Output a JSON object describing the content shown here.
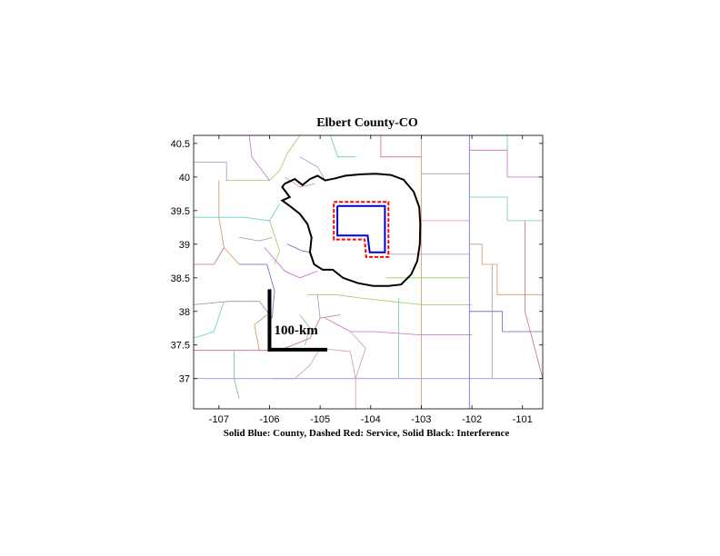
{
  "figure": {
    "title": "Elbert County-CO",
    "caption": "Solid Blue: County, Dashed Red: Service, Solid Black: Interference",
    "scale_bar_label": "100-km"
  },
  "chart_data": {
    "type": "map",
    "title": "Elbert County-CO",
    "xlabel": "Solid Blue: County, Dashed Red: Service, Solid Black: Interference",
    "ylabel": "",
    "xlim": [
      -107.5,
      -100.6
    ],
    "ylim": [
      36.55,
      40.62
    ],
    "x_ticks": [
      -107,
      -106,
      -105,
      -104,
      -103,
      -102,
      -101
    ],
    "y_ticks": [
      37,
      37.5,
      38,
      38.5,
      39,
      39.5,
      40,
      40.5
    ],
    "x_tick_labels": [
      "-107",
      "-106",
      "-105",
      "-104",
      "-103",
      "-102",
      "-101"
    ],
    "y_tick_labels": [
      "37",
      "37.5",
      "38",
      "38.5",
      "39",
      "39.5",
      "40",
      "40.5"
    ],
    "county_outline": {
      "color": "#0000cc",
      "points": [
        [
          -104.66,
          39.57
        ],
        [
          -103.72,
          39.57
        ],
        [
          -103.72,
          38.88
        ],
        [
          -104.02,
          38.88
        ],
        [
          -104.06,
          39.13
        ],
        [
          -104.66,
          39.13
        ],
        [
          -104.66,
          39.57
        ]
      ]
    },
    "service_contour": {
      "color": "#ff0000",
      "points": [
        [
          -104.73,
          39.63
        ],
        [
          -103.65,
          39.63
        ],
        [
          -103.65,
          38.81
        ],
        [
          -104.09,
          38.81
        ],
        [
          -104.12,
          39.07
        ],
        [
          -104.73,
          39.07
        ],
        [
          -104.73,
          39.63
        ]
      ]
    },
    "interference_contour": {
      "color": "#000000",
      "points": [
        [
          -105.7,
          39.9
        ],
        [
          -105.5,
          39.97
        ],
        [
          -105.35,
          39.88
        ],
        [
          -105.2,
          39.97
        ],
        [
          -105.05,
          40.02
        ],
        [
          -104.9,
          39.95
        ],
        [
          -104.7,
          39.98
        ],
        [
          -104.5,
          40.02
        ],
        [
          -104.2,
          40.04
        ],
        [
          -103.9,
          40.05
        ],
        [
          -103.6,
          40.03
        ],
        [
          -103.35,
          39.96
        ],
        [
          -103.15,
          39.78
        ],
        [
          -103.04,
          39.55
        ],
        [
          -103.02,
          39.3
        ],
        [
          -103.03,
          39.0
        ],
        [
          -103.08,
          38.75
        ],
        [
          -103.2,
          38.55
        ],
        [
          -103.4,
          38.4
        ],
        [
          -103.65,
          38.38
        ],
        [
          -103.95,
          38.38
        ],
        [
          -104.25,
          38.42
        ],
        [
          -104.55,
          38.5
        ],
        [
          -104.75,
          38.62
        ],
        [
          -104.95,
          38.62
        ],
        [
          -105.12,
          38.7
        ],
        [
          -105.2,
          38.88
        ],
        [
          -105.17,
          39.1
        ],
        [
          -105.25,
          39.3
        ],
        [
          -105.4,
          39.45
        ],
        [
          -105.6,
          39.57
        ],
        [
          -105.75,
          39.65
        ],
        [
          -105.6,
          39.7
        ],
        [
          -105.75,
          39.85
        ],
        [
          -105.7,
          39.9
        ]
      ]
    },
    "scale_bar": {
      "label": "100-km",
      "corner": [
        -106.0,
        37.43
      ],
      "length_deg_lon": 1.14,
      "length_deg_lat": 0.9
    },
    "county_boundaries": {
      "colors": [
        "#9999cc",
        "#99cc66",
        "#cc66cc",
        "#66cccc",
        "#cc9966",
        "#6666cc",
        "#999999",
        "#cc6699",
        "#66cc99",
        "#cc9999"
      ],
      "segments": [
        [
          [
            -107.5,
            40.22
          ],
          [
            -106.85,
            40.22
          ],
          [
            -106.85,
            39.95
          ]
        ],
        [
          [
            -106.85,
            39.95
          ],
          [
            -106.0,
            39.95
          ],
          [
            -105.8,
            40.1
          ],
          [
            -105.65,
            40.35
          ],
          [
            -105.4,
            40.62
          ]
        ],
        [
          [
            -106.4,
            40.62
          ],
          [
            -106.35,
            40.3
          ],
          [
            -106.0,
            39.95
          ]
        ],
        [
          [
            -107.5,
            39.4
          ],
          [
            -106.5,
            39.4
          ],
          [
            -106.0,
            39.35
          ],
          [
            -105.8,
            39.6
          ]
        ],
        [
          [
            -107.0,
            39.95
          ],
          [
            -107.0,
            39.4
          ],
          [
            -106.9,
            38.95
          ],
          [
            -106.6,
            38.7
          ]
        ],
        [
          [
            -106.6,
            38.7
          ],
          [
            -106.05,
            38.7
          ],
          [
            -105.9,
            38.3
          ],
          [
            -105.95,
            37.9
          ]
        ],
        [
          [
            -107.5,
            38.1
          ],
          [
            -106.8,
            38.15
          ],
          [
            -106.2,
            38.15
          ],
          [
            -105.95,
            37.9
          ]
        ],
        [
          [
            -107.5,
            37.42
          ],
          [
            -106.7,
            37.42
          ],
          [
            -106.1,
            37.42
          ],
          [
            -105.7,
            37.45
          ],
          [
            -105.2,
            37.6
          ],
          [
            -105.0,
            37.9
          ],
          [
            -104.6,
            37.95
          ]
        ],
        [
          [
            -106.7,
            37.42
          ],
          [
            -106.7,
            37.0
          ],
          [
            -106.6,
            36.7
          ]
        ],
        [
          [
            -105.95,
            37.0
          ],
          [
            -105.5,
            37.0
          ],
          [
            -105.2,
            37.2
          ],
          [
            -105.0,
            37.45
          ],
          [
            -104.4,
            37.4
          ],
          [
            -104.3,
            37.0
          ],
          [
            -104.3,
            36.55
          ]
        ],
        [
          [
            -107.5,
            37.0
          ],
          [
            -104.3,
            37.0
          ],
          [
            -103.0,
            37.0
          ],
          [
            -100.6,
            37.0
          ]
        ],
        [
          [
            -105.25,
            38.25
          ],
          [
            -104.7,
            38.25
          ],
          [
            -104.2,
            38.2
          ],
          [
            -103.6,
            38.15
          ],
          [
            -103.0,
            38.1
          ],
          [
            -102.0,
            38.1
          ]
        ],
        [
          [
            -104.9,
            37.9
          ],
          [
            -104.4,
            37.7
          ],
          [
            -103.95,
            37.7
          ],
          [
            -103.0,
            37.65
          ],
          [
            -102.0,
            37.65
          ]
        ],
        [
          [
            -103.45,
            38.2
          ],
          [
            -103.45,
            37.65
          ],
          [
            -103.45,
            37.0
          ]
        ],
        [
          [
            -103.0,
            40.62
          ],
          [
            -103.0,
            39.0
          ],
          [
            -103.0,
            37.0
          ],
          [
            -103.0,
            36.55
          ]
        ],
        [
          [
            -102.05,
            40.62
          ],
          [
            -102.05,
            36.55
          ]
        ],
        [
          [
            -103.0,
            40.05
          ],
          [
            -102.05,
            40.05
          ]
        ],
        [
          [
            -103.8,
            40.62
          ],
          [
            -103.8,
            40.3
          ],
          [
            -103.0,
            40.3
          ]
        ],
        [
          [
            -104.8,
            40.62
          ],
          [
            -104.65,
            40.3
          ],
          [
            -104.3,
            40.3
          ]
        ],
        [
          [
            -103.0,
            39.35
          ],
          [
            -102.05,
            39.35
          ]
        ],
        [
          [
            -103.7,
            38.85
          ],
          [
            -103.0,
            38.85
          ],
          [
            -102.05,
            38.85
          ]
        ],
        [
          [
            -103.7,
            38.5
          ],
          [
            -103.0,
            38.5
          ],
          [
            -102.05,
            38.5
          ]
        ],
        [
          [
            -102.05,
            40.4
          ],
          [
            -101.3,
            40.4
          ],
          [
            -101.3,
            40.0
          ],
          [
            -100.6,
            40.0
          ]
        ],
        [
          [
            -102.05,
            39.7
          ],
          [
            -101.3,
            39.7
          ],
          [
            -101.3,
            39.35
          ],
          [
            -100.6,
            39.35
          ]
        ],
        [
          [
            -102.05,
            39.0
          ],
          [
            -101.8,
            39.0
          ],
          [
            -101.8,
            38.7
          ],
          [
            -101.5,
            38.7
          ],
          [
            -101.5,
            38.25
          ],
          [
            -100.6,
            38.25
          ]
        ],
        [
          [
            -102.05,
            38.0
          ],
          [
            -101.4,
            38.0
          ],
          [
            -101.4,
            37.7
          ],
          [
            -100.6,
            37.7
          ]
        ],
        [
          [
            -101.6,
            38.7
          ],
          [
            -101.6,
            37.0
          ]
        ],
        [
          [
            -100.95,
            39.35
          ],
          [
            -100.95,
            38.0
          ],
          [
            -100.6,
            37.0
          ]
        ],
        [
          [
            -101.3,
            40.62
          ],
          [
            -101.3,
            40.4
          ]
        ],
        [
          [
            -105.7,
            40.0
          ],
          [
            -105.4,
            39.85
          ],
          [
            -105.1,
            39.9
          ]
        ],
        [
          [
            -105.4,
            40.3
          ],
          [
            -105.05,
            40.15
          ],
          [
            -104.9,
            39.95
          ]
        ],
        [
          [
            -106.0,
            39.35
          ],
          [
            -105.8,
            38.9
          ],
          [
            -105.9,
            38.7
          ]
        ],
        [
          [
            -106.1,
            38.95
          ],
          [
            -105.7,
            38.6
          ],
          [
            -105.4,
            38.5
          ],
          [
            -105.05,
            38.6
          ]
        ],
        [
          [
            -106.9,
            38.15
          ],
          [
            -107.1,
            37.7
          ],
          [
            -107.5,
            37.6
          ]
        ],
        [
          [
            -106.05,
            37.95
          ],
          [
            -106.3,
            37.8
          ],
          [
            -106.2,
            37.42
          ]
        ],
        [
          [
            -105.65,
            39.0
          ],
          [
            -105.35,
            38.9
          ],
          [
            -105.2,
            38.88
          ]
        ],
        [
          [
            -106.6,
            39.1
          ],
          [
            -106.2,
            39.05
          ],
          [
            -105.95,
            39.1
          ]
        ],
        [
          [
            -107.5,
            38.7
          ],
          [
            -107.1,
            38.7
          ],
          [
            -106.9,
            38.95
          ]
        ],
        [
          [
            -105.4,
            37.95
          ],
          [
            -105.2,
            37.75
          ],
          [
            -105.3,
            37.5
          ]
        ],
        [
          [
            -104.4,
            37.7
          ],
          [
            -104.1,
            37.45
          ],
          [
            -104.3,
            37.0
          ]
        ],
        [
          [
            -105.05,
            38.25
          ],
          [
            -105.0,
            37.9
          ]
        ]
      ]
    }
  }
}
